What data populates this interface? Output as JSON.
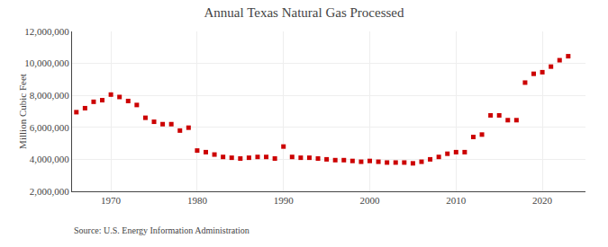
{
  "chart_data": {
    "type": "scatter",
    "title": "Annual Texas Natural Gas Processed",
    "ylabel": "Million Cubic Feet",
    "annotations": [
      "Source: U.S. Energy Information Administration"
    ],
    "color": "#cc0000",
    "marker": "square",
    "grid": true,
    "x": [
      1966,
      1967,
      1968,
      1969,
      1970,
      1971,
      1972,
      1973,
      1974,
      1975,
      1976,
      1977,
      1978,
      1979,
      1980,
      1981,
      1982,
      1983,
      1984,
      1985,
      1986,
      1987,
      1988,
      1989,
      1990,
      1991,
      1992,
      1993,
      1994,
      1995,
      1996,
      1997,
      1998,
      1999,
      2000,
      2001,
      2002,
      2003,
      2004,
      2005,
      2006,
      2007,
      2008,
      2009,
      2010,
      2011,
      2012,
      2013,
      2014,
      2015,
      2016,
      2017,
      2018,
      2019,
      2020,
      2021,
      2022,
      2023
    ],
    "values": [
      6950000,
      7200000,
      7600000,
      7700000,
      8050000,
      7900000,
      7650000,
      7400000,
      6600000,
      6350000,
      6200000,
      6200000,
      5800000,
      5980000,
      4550000,
      4450000,
      4300000,
      4150000,
      4100000,
      4050000,
      4100000,
      4150000,
      4150000,
      4050000,
      4800000,
      4150000,
      4100000,
      4100000,
      4050000,
      4000000,
      3950000,
      3950000,
      3900000,
      3850000,
      3900000,
      3850000,
      3800000,
      3800000,
      3800000,
      3750000,
      3850000,
      4000000,
      4150000,
      4350000,
      4450000,
      4450000,
      5400000,
      5550000,
      6750000,
      6750000,
      6450000,
      6450000,
      8800000,
      9350000,
      9450000,
      9800000,
      10200000,
      10450000
    ],
    "xlim": [
      1965.5,
      2025
    ],
    "xticks": [
      1970,
      1980,
      1990,
      2000,
      2010,
      2020
    ],
    "ylim": [
      2000000,
      12000000
    ],
    "yticks": [
      {
        "value": 2000000,
        "label": "2,000,000"
      },
      {
        "value": 4000000,
        "label": "4,000,000"
      },
      {
        "value": 6000000,
        "label": "6,000,000"
      },
      {
        "value": 8000000,
        "label": "8,000,000"
      },
      {
        "value": 10000000,
        "label": "10,000,000"
      },
      {
        "value": 12000000,
        "label": "12,000,000"
      }
    ]
  }
}
